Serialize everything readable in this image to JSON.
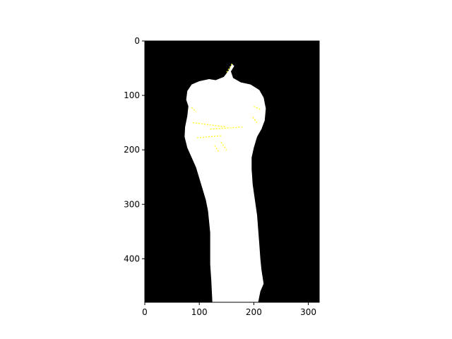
{
  "chart_data": {
    "type": "image",
    "title": "",
    "xlabel": "",
    "ylabel": "",
    "xlim": [
      0,
      320
    ],
    "ylim": [
      480,
      0
    ],
    "y_axis_inverted": true,
    "xticks": [
      0,
      100,
      200,
      300
    ],
    "yticks": [
      0,
      100,
      200,
      300,
      400
    ],
    "grid": false,
    "legend": "none",
    "colors": {
      "background": "#000000",
      "mask": "#ffffff",
      "highlight": "#ffff00"
    },
    "image": {
      "description_values": "binary segmentation mask: white foreground shape on black background with yellow speckles",
      "mask_outline": [
        [
          160,
          42
        ],
        [
          154,
          54
        ],
        [
          145,
          66
        ],
        [
          130,
          72
        ],
        [
          118,
          70
        ],
        [
          100,
          74
        ],
        [
          86,
          80
        ],
        [
          78,
          92
        ],
        [
          76,
          108
        ],
        [
          80,
          120
        ],
        [
          78,
          138
        ],
        [
          74,
          158
        ],
        [
          73,
          176
        ],
        [
          78,
          196
        ],
        [
          86,
          214
        ],
        [
          94,
          232
        ],
        [
          100,
          252
        ],
        [
          106,
          272
        ],
        [
          112,
          292
        ],
        [
          116,
          312
        ],
        [
          118,
          332
        ],
        [
          120,
          352
        ],
        [
          120,
          380
        ],
        [
          120,
          410
        ],
        [
          122,
          440
        ],
        [
          124,
          480
        ],
        [
          208,
          480
        ],
        [
          212,
          460
        ],
        [
          218,
          446
        ],
        [
          214,
          420
        ],
        [
          212,
          400
        ],
        [
          210,
          372
        ],
        [
          208,
          346
        ],
        [
          206,
          320
        ],
        [
          202,
          292
        ],
        [
          198,
          264
        ],
        [
          196,
          236
        ],
        [
          196,
          214
        ],
        [
          200,
          196
        ],
        [
          206,
          176
        ],
        [
          214,
          162
        ],
        [
          220,
          146
        ],
        [
          222,
          124
        ],
        [
          218,
          104
        ],
        [
          210,
          90
        ],
        [
          194,
          80
        ],
        [
          176,
          76
        ],
        [
          162,
          68
        ],
        [
          158,
          56
        ],
        [
          164,
          46
        ]
      ],
      "yellow_streaks": [
        [
          [
            160,
            42
          ],
          [
            150,
            58
          ]
        ],
        [
          [
            88,
            150
          ],
          [
            150,
            158
          ]
        ],
        [
          [
            120,
            162
          ],
          [
            182,
            158
          ]
        ],
        [
          [
            96,
            178
          ],
          [
            140,
            174
          ]
        ],
        [
          [
            86,
            122
          ],
          [
            94,
            130
          ]
        ],
        [
          [
            200,
            120
          ],
          [
            212,
            126
          ]
        ],
        [
          [
            198,
            140
          ],
          [
            206,
            150
          ]
        ],
        [
          [
            140,
            186
          ],
          [
            150,
            200
          ]
        ],
        [
          [
            128,
            192
          ],
          [
            136,
            204
          ]
        ]
      ]
    }
  }
}
